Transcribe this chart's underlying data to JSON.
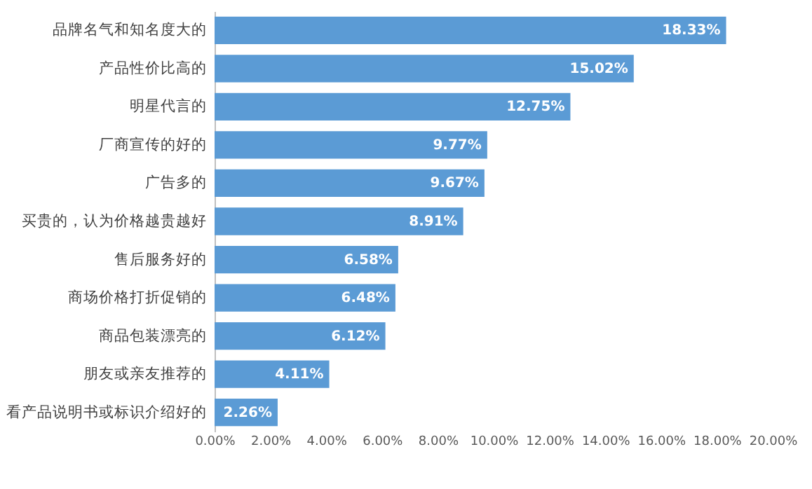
{
  "chart_data": {
    "type": "bar",
    "orientation": "horizontal",
    "categories": [
      "品牌名气和知名度大的",
      "产品性价比高的",
      "明星代言的",
      "厂商宣传的好的",
      "广告多的",
      "买贵的，认为价格越贵越好",
      "售后服务好的",
      "商场价格打折促销的",
      "商品包装漂亮的",
      "朋友或亲友推荐的",
      "看产品说明书或标识介绍好的"
    ],
    "values": [
      18.33,
      15.02,
      12.75,
      9.77,
      9.67,
      8.91,
      6.58,
      6.48,
      6.12,
      4.11,
      2.26
    ],
    "value_labels": [
      "18.33%",
      "15.02%",
      "12.75%",
      "9.77%",
      "9.67%",
      "8.91%",
      "6.58%",
      "6.48%",
      "6.12%",
      "4.11%",
      "2.26%"
    ],
    "color": "#5b9bd5",
    "xlim": [
      0,
      20
    ],
    "xticks": [
      {
        "value": 0,
        "label": "0.00%"
      },
      {
        "value": 2,
        "label": "2.00%"
      },
      {
        "value": 4,
        "label": "4.00%"
      },
      {
        "value": 6,
        "label": "6.00%"
      },
      {
        "value": 8,
        "label": "8.00%"
      },
      {
        "value": 10,
        "label": "10.00%"
      },
      {
        "value": 12,
        "label": "12.00%"
      },
      {
        "value": 14,
        "label": "14.00%"
      },
      {
        "value": 16,
        "label": "16.00%"
      },
      {
        "value": 18,
        "label": "18.00%"
      },
      {
        "value": 20,
        "label": "20.00%"
      }
    ],
    "grid": false
  }
}
